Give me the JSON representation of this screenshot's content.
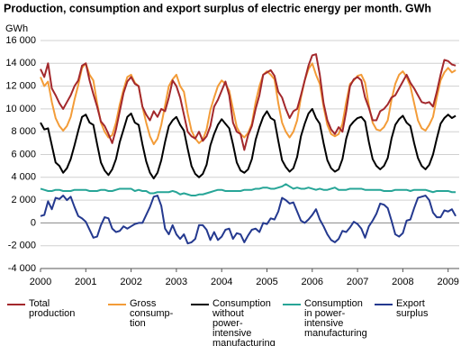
{
  "chart_data": {
    "type": "line",
    "title": "Production, consumption and export surplus of electric energy per month. GWh",
    "y_label": "GWh",
    "categories": [
      "2000",
      null,
      null,
      null,
      null,
      null,
      null,
      null,
      null,
      null,
      null,
      null,
      "2001",
      null,
      null,
      null,
      null,
      null,
      null,
      null,
      null,
      null,
      null,
      null,
      "2002",
      null,
      null,
      null,
      null,
      null,
      null,
      null,
      null,
      null,
      null,
      null,
      "2003",
      null,
      null,
      null,
      null,
      null,
      null,
      null,
      null,
      null,
      null,
      null,
      "2004",
      null,
      null,
      null,
      null,
      null,
      null,
      null,
      null,
      null,
      null,
      null,
      "2005",
      null,
      null,
      null,
      null,
      null,
      null,
      null,
      null,
      null,
      null,
      null,
      "2006",
      null,
      null,
      null,
      null,
      null,
      null,
      null,
      null,
      null,
      null,
      null,
      "2007",
      null,
      null,
      null,
      null,
      null,
      null,
      null,
      null,
      null,
      null,
      null,
      "2008",
      null,
      null,
      null,
      null,
      null,
      null,
      null,
      null,
      null,
      null,
      null,
      "2009",
      null,
      null
    ],
    "ylim": [
      -4000,
      16000
    ],
    "yticks": [
      {
        "value": -4000,
        "label": "-4 000"
      },
      {
        "value": -2000,
        "label": "-2 000"
      },
      0,
      {
        "value": 2000,
        "label": "2 000"
      },
      {
        "value": 4000,
        "label": "4 000"
      },
      {
        "value": 6000,
        "label": "6 000"
      },
      {
        "value": 8000,
        "label": "8 000"
      },
      {
        "value": 10000,
        "label": "10 000"
      },
      {
        "value": 12000,
        "label": "12 000"
      },
      {
        "value": 14000,
        "label": "14 000"
      },
      {
        "value": 16000,
        "label": "16 000"
      }
    ],
    "grid": true,
    "series": [
      {
        "name": "Total\nproduction",
        "color": "#a3282c",
        "values": [
          13500,
          12800,
          14000,
          11800,
          11200,
          10500,
          10000,
          10600,
          11200,
          12000,
          12500,
          13800,
          14000,
          12500,
          11300,
          10200,
          8900,
          8500,
          7800,
          7000,
          8200,
          9800,
          11400,
          12400,
          12800,
          12200,
          12000,
          10200,
          9500,
          9000,
          9800,
          9300,
          10000,
          9800,
          11000,
          12500,
          12000,
          11000,
          9500,
          8000,
          7600,
          7400,
          8000,
          7200,
          7600,
          8500,
          10200,
          10800,
          11600,
          12400,
          11200,
          8800,
          8000,
          7800,
          6400,
          7700,
          8500,
          10000,
          11200,
          13000,
          13200,
          13400,
          12900,
          11500,
          11000,
          10000,
          9200,
          9800,
          10000,
          11200,
          12500,
          13800,
          14700,
          14800,
          13000,
          10500,
          9000,
          8200,
          7800,
          8400,
          8000,
          9800,
          12000,
          12600,
          12800,
          12500,
          11000,
          10100,
          9000,
          9000,
          9800,
          10000,
          10400,
          11000,
          11200,
          11800,
          12400,
          13000,
          12300,
          11800,
          11200,
          10600,
          10500,
          10600,
          10200,
          11500,
          13000,
          14300,
          14200,
          13900,
          13800
        ]
      },
      {
        "name": "Gross\nconsump-\ntion",
        "color": "#f39c38",
        "values": [
          12800,
          12000,
          12400,
          10600,
          9200,
          8500,
          8100,
          8500,
          9300,
          10800,
          12100,
          13600,
          14000,
          13000,
          12500,
          10500,
          8800,
          8000,
          7500,
          7700,
          8800,
          10400,
          11700,
          12800,
          13000,
          12300,
          12000,
          10200,
          8800,
          7600,
          6900,
          7400,
          8600,
          10300,
          12000,
          12600,
          13000,
          12000,
          11500,
          9600,
          8100,
          7400,
          7000,
          7300,
          8200,
          9900,
          11000,
          12000,
          12500,
          12200,
          11600,
          10000,
          8400,
          7800,
          7500,
          7900,
          8700,
          10600,
          12000,
          13000,
          13300,
          13000,
          12600,
          10500,
          8800,
          8000,
          7500,
          8000,
          9000,
          11000,
          12500,
          13500,
          14000,
          13000,
          12200,
          10200,
          8600,
          7800,
          7600,
          7800,
          8700,
          10600,
          12200,
          12500,
          12900,
          13000,
          12300,
          10300,
          8800,
          8200,
          8100,
          8400,
          9000,
          10800,
          12200,
          13000,
          13300,
          12800,
          12000,
          10500,
          9000,
          8300,
          8100,
          8600,
          9300,
          11000,
          12500,
          13200,
          13600,
          13200,
          13400
        ]
      },
      {
        "name": "Consumption\nwithout power-\nintensive\nmanufacturing",
        "color": "#000000",
        "values": [
          8800,
          8200,
          8300,
          6800,
          5300,
          5000,
          4400,
          4800,
          5600,
          6800,
          8100,
          9300,
          9500,
          8800,
          8600,
          6900,
          5300,
          4600,
          4200,
          4700,
          5600,
          7100,
          8200,
          9300,
          9600,
          8800,
          8600,
          6900,
          5400,
          4400,
          3900,
          4400,
          5500,
          7100,
          8500,
          9000,
          9300,
          8600,
          8100,
          6500,
          5000,
          4300,
          4000,
          4300,
          5100,
          6800,
          7800,
          8600,
          9100,
          8700,
          8300,
          6900,
          5300,
          4600,
          4400,
          4700,
          5600,
          7300,
          8400,
          9300,
          9800,
          9200,
          9000,
          7200,
          5500,
          4900,
          4500,
          4800,
          5800,
          7600,
          8700,
          9600,
          10000,
          9200,
          8700,
          7000,
          5500,
          4800,
          4500,
          4700,
          5600,
          7400,
          8500,
          8900,
          9200,
          9300,
          8900,
          7100,
          5600,
          5000,
          4700,
          5000,
          5700,
          7400,
          8600,
          9100,
          9400,
          8800,
          8500,
          7000,
          5700,
          5000,
          4700,
          5100,
          6000,
          7400,
          8700,
          9200,
          9500,
          9200,
          9400
        ]
      },
      {
        "name": "Consumption\nin power-\nintensive\nmanufacturing",
        "color": "#27a597",
        "values": [
          3000,
          2900,
          2800,
          2800,
          2900,
          2900,
          2800,
          2800,
          2800,
          2900,
          2900,
          2900,
          2900,
          2800,
          2800,
          2800,
          2900,
          2900,
          2800,
          2800,
          2900,
          3000,
          3000,
          3000,
          3000,
          2800,
          2900,
          2800,
          2800,
          2600,
          2600,
          2700,
          2700,
          2700,
          2700,
          2800,
          2700,
          2500,
          2600,
          2500,
          2400,
          2400,
          2500,
          2500,
          2600,
          2700,
          2800,
          2900,
          2900,
          2800,
          2800,
          2800,
          2800,
          2800,
          2900,
          2900,
          2900,
          3000,
          3000,
          3100,
          3100,
          3000,
          3000,
          3100,
          3200,
          3400,
          3200,
          3000,
          3100,
          3000,
          3000,
          3100,
          3000,
          2900,
          3000,
          2900,
          2900,
          3000,
          3100,
          2900,
          2900,
          2900,
          3000,
          3000,
          3000,
          3000,
          2900,
          2900,
          2900,
          2900,
          2900,
          2800,
          2800,
          2800,
          2900,
          2900,
          2900,
          2900,
          2800,
          2900,
          2900,
          2900,
          2900,
          2800,
          2700,
          2800,
          2800,
          2800,
          2800,
          2700,
          2700
        ]
      },
      {
        "name": "Export\nsurplus",
        "color": "#24398f",
        "values": [
          600,
          700,
          1900,
          1200,
          2200,
          2100,
          2400,
          2000,
          2300,
          1400,
          600,
          400,
          100,
          -600,
          -1300,
          -1200,
          -200,
          500,
          400,
          -500,
          -800,
          -700,
          -300,
          -500,
          -300,
          -100,
          0,
          0,
          700,
          1400,
          2300,
          2400,
          1500,
          -500,
          -1000,
          -200,
          -1000,
          -1400,
          -1000,
          -1800,
          -1700,
          -1400,
          -200,
          -200,
          -600,
          -1500,
          -800,
          -1500,
          -1200,
          -600,
          -500,
          -1400,
          -900,
          -1000,
          -1700,
          -1100,
          -600,
          -500,
          -800,
          0,
          -100,
          400,
          300,
          1000,
          2200,
          2000,
          1700,
          1800,
          1000,
          200,
          0,
          300,
          700,
          1200,
          300,
          -300,
          -1000,
          -1500,
          -1700,
          -1400,
          -700,
          -800,
          -400,
          100,
          -100,
          -500,
          -1300,
          -300,
          200,
          800,
          1700,
          1600,
          1300,
          200,
          -1000,
          -1200,
          -900,
          200,
          300,
          1300,
          2200,
          2300,
          2400,
          2000,
          900,
          500,
          500,
          1100,
          1000,
          1200,
          600
        ]
      }
    ]
  }
}
